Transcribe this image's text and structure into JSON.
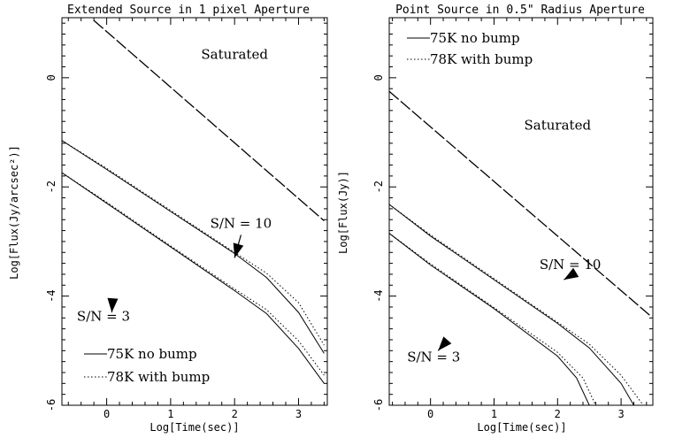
{
  "chart_data": [
    {
      "type": "line",
      "title": "Extended Source in 1 pixel Aperture",
      "xlabel": "Log[Time(sec)]",
      "ylabel": "Log[Flux(Jy/arcsec²)]",
      "xlim": [
        -0.7,
        3.45
      ],
      "ylim": [
        -6,
        1.1
      ],
      "xticks": [
        0,
        1,
        2,
        3
      ],
      "yticks": [
        0,
        -2,
        -4,
        -6
      ],
      "grid": false,
      "legend_position": "bottom-left",
      "legend": [
        "75K no bump",
        "78K with bump"
      ],
      "series": [
        {
          "name": "75K no bump",
          "style": "solid",
          "role": "S/N=10",
          "x": [
            -0.7,
            0,
            1,
            2,
            2.5,
            3,
            3.4
          ],
          "y": [
            -1.15,
            -1.68,
            -2.45,
            -3.22,
            -3.66,
            -4.3,
            -5.05
          ]
        },
        {
          "name": "78K with bump",
          "style": "dotted",
          "role": "S/N=10",
          "x": [
            -0.7,
            0,
            1,
            2,
            2.5,
            3,
            3.4
          ],
          "y": [
            -1.15,
            -1.66,
            -2.43,
            -3.2,
            -3.58,
            -4.12,
            -4.9
          ]
        },
        {
          "name": "75K no bump",
          "style": "solid",
          "role": "S/N=3",
          "x": [
            -0.7,
            0,
            1,
            2,
            2.5,
            3,
            3.4
          ],
          "y": [
            -1.74,
            -2.3,
            -3.1,
            -3.9,
            -4.32,
            -4.96,
            -5.6
          ]
        },
        {
          "name": "78K with bump",
          "style": "dotted",
          "role": "S/N=3",
          "x": [
            -0.7,
            0,
            1,
            2,
            2.5,
            3,
            3.4
          ],
          "y": [
            -1.74,
            -2.28,
            -3.08,
            -3.87,
            -4.25,
            -4.82,
            -5.45
          ]
        },
        {
          "name": "Saturated",
          "style": "dashed",
          "role": "saturation",
          "x": [
            -0.2,
            3.4
          ],
          "y": [
            1.05,
            -2.62
          ]
        }
      ],
      "annotations": [
        {
          "text": "Saturated",
          "x": 2.0,
          "y": 0.35
        },
        {
          "text": "S/N = 10",
          "x": 2.1,
          "y": -2.75
        },
        {
          "text": "S/N = 3",
          "x": -0.05,
          "y": -4.45
        }
      ]
    },
    {
      "type": "line",
      "title": "Point Source in 0.5\" Radius Aperture",
      "xlabel": "Log[Time(sec)]",
      "ylabel": "Log[Flux(Jy)]",
      "xlim": [
        -0.65,
        3.5
      ],
      "ylim": [
        -6,
        1.1
      ],
      "xticks": [
        0,
        1,
        2,
        3
      ],
      "yticks": [
        0,
        -2,
        -4,
        -6
      ],
      "grid": false,
      "legend_position": "top-left",
      "legend": [
        "75K no bump",
        "78K with bump"
      ],
      "series": [
        {
          "name": "75K no bump",
          "style": "solid",
          "role": "S/N=10",
          "x": [
            -0.65,
            0,
            1,
            2,
            2.5,
            3,
            3.2
          ],
          "y": [
            -2.32,
            -2.9,
            -3.7,
            -4.5,
            -4.95,
            -5.6,
            -6.0
          ]
        },
        {
          "name": "78K with bump",
          "style": "dotted",
          "role": "S/N=10",
          "x": [
            -0.65,
            0,
            1,
            2,
            2.5,
            3,
            3.35
          ],
          "y": [
            -2.32,
            -2.88,
            -3.68,
            -4.48,
            -4.88,
            -5.45,
            -6.0
          ]
        },
        {
          "name": "75K no bump",
          "style": "solid",
          "role": "S/N=3",
          "x": [
            -0.65,
            0,
            1,
            2,
            2.3,
            2.5
          ],
          "y": [
            -2.85,
            -3.43,
            -4.23,
            -5.1,
            -5.5,
            -6.0
          ]
        },
        {
          "name": "78K with bump",
          "style": "dotted",
          "role": "S/N=3",
          "x": [
            -0.65,
            0,
            1,
            2,
            2.4,
            2.6
          ],
          "y": [
            -2.85,
            -3.41,
            -4.21,
            -5.03,
            -5.5,
            -6.0
          ]
        },
        {
          "name": "Saturated",
          "style": "dashed",
          "role": "saturation",
          "x": [
            -0.65,
            3.45
          ],
          "y": [
            -0.25,
            -4.35
          ]
        }
      ],
      "annotations": [
        {
          "text": "Saturated",
          "x": 2.0,
          "y": -0.95
        },
        {
          "text": "S/N = 10",
          "x": 2.2,
          "y": -3.5
        },
        {
          "text": "S/N = 3",
          "x": 0.05,
          "y": -5.2
        }
      ]
    }
  ]
}
